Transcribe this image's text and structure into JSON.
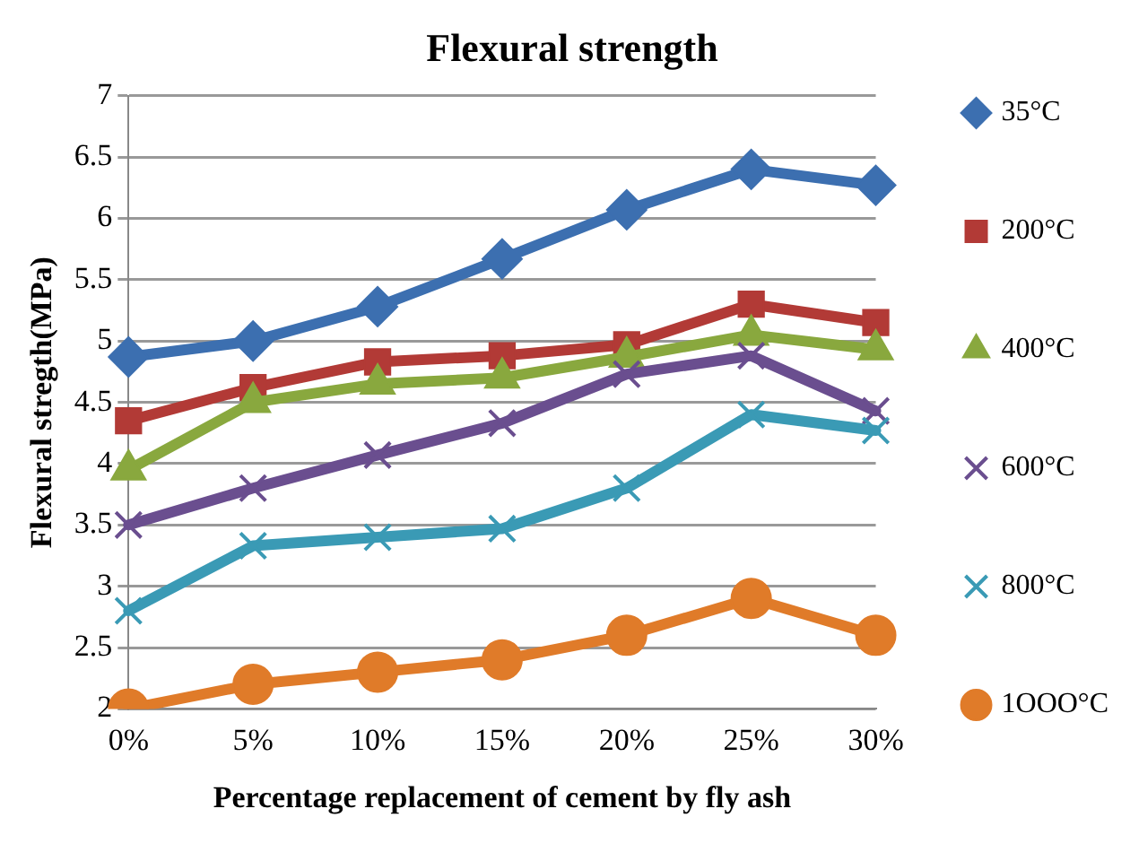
{
  "chart_data": {
    "type": "line",
    "title": "Flexural strength",
    "xlabel": "Percentage replacement of cement by fly ash",
    "ylabel": "Flexural stregth(MPa)",
    "categories": [
      "0%",
      "5%",
      "10%",
      "15%",
      "20%",
      "25%",
      "30%"
    ],
    "ylim": [
      2,
      7
    ],
    "yticks": [
      2,
      2.5,
      3,
      3.5,
      4,
      4.5,
      5,
      5.5,
      6,
      6.5,
      7
    ],
    "grid": "y",
    "legend": "right",
    "series": [
      {
        "name": "35°C",
        "color": "#3c6fb0",
        "marker": "diamond",
        "values": [
          4.87,
          5.0,
          5.28,
          5.67,
          6.07,
          6.4,
          6.27
        ]
      },
      {
        "name": "200°C",
        "color": "#b23a36",
        "marker": "square",
        "values": [
          4.35,
          4.62,
          4.83,
          4.88,
          4.97,
          5.3,
          5.15
        ]
      },
      {
        "name": "400°C",
        "color": "#89a83e",
        "marker": "triangle",
        "values": [
          3.95,
          4.5,
          4.65,
          4.7,
          4.87,
          5.05,
          4.93
        ]
      },
      {
        "name": "600°C",
        "color": "#6a4e8f",
        "marker": "cross",
        "values": [
          3.5,
          3.8,
          4.07,
          4.33,
          4.73,
          4.88,
          4.43
        ]
      },
      {
        "name": "800°C",
        "color": "#3a9ab5",
        "marker": "cross",
        "values": [
          2.8,
          3.33,
          3.4,
          3.47,
          3.8,
          4.4,
          4.27
        ]
      },
      {
        "name": "1OOO°C",
        "color": "#e07b29",
        "marker": "circle",
        "values": [
          2.0,
          2.2,
          2.3,
          2.4,
          2.6,
          2.9,
          2.6
        ]
      }
    ]
  }
}
